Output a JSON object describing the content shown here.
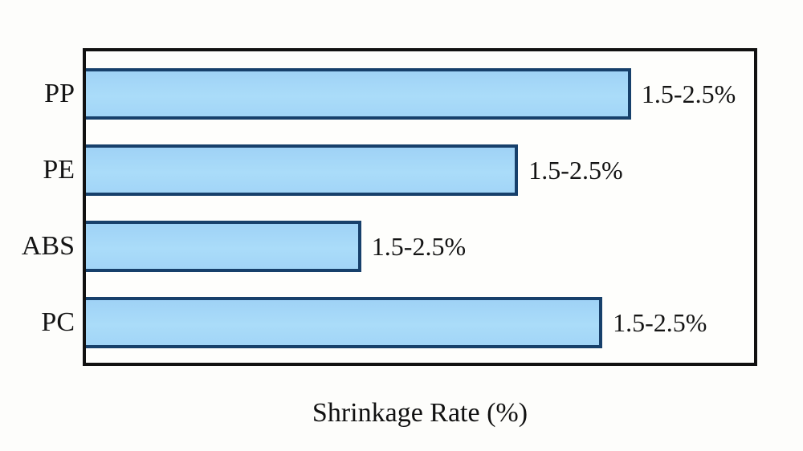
{
  "chart_data": {
    "type": "bar",
    "orientation": "horizontal",
    "title": "",
    "xlabel": "Shrinkage Rate (%)",
    "ylabel": "",
    "categories": [
      "PP",
      "PE",
      "ABS",
      "PC"
    ],
    "value_labels": [
      "1.5-2.5%",
      "1.5-2.5%",
      "1.5-2.5%",
      "1.5-2.5%"
    ],
    "bar_lengths_fraction_of_plot_width": [
      0.816,
      0.647,
      0.412,
      0.773
    ],
    "axis_ticks": "none",
    "gridlines": false,
    "legend": "none",
    "colors": {
      "bar_fill": "#a5d7f8",
      "bar_border": "#17406b",
      "frame_border": "#111111",
      "background": "#fdfdfb",
      "text": "#141414"
    },
    "bars": [
      {
        "category": "PP",
        "value_label": "1.5-2.5%",
        "length_pct": 81.6
      },
      {
        "category": "PE",
        "value_label": "1.5-2.5%",
        "length_pct": 64.7
      },
      {
        "category": "ABS",
        "value_label": "1.5-2.5%",
        "length_pct": 41.2
      },
      {
        "category": "PC",
        "value_label": "1.5-2.5%",
        "length_pct": 77.3
      }
    ]
  }
}
